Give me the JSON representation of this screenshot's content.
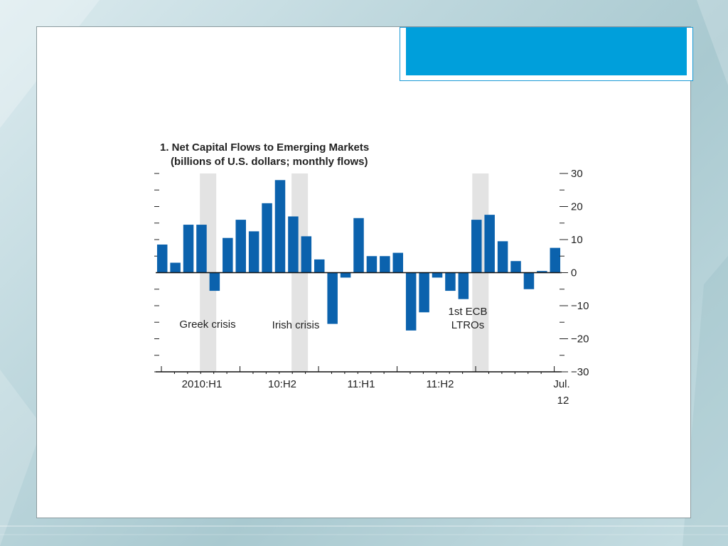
{
  "chart_data": {
    "type": "bar",
    "title": "1. Net Capital Flows to Emerging Markets",
    "subtitle": "(billions of U.S. dollars; monthly flows)",
    "ylim": [
      -30,
      30
    ],
    "y_ticks": [
      30,
      20,
      10,
      0,
      -10,
      -20,
      -30
    ],
    "y_tick_labels": [
      "30",
      "20",
      "10",
      "0",
      "−10",
      "−20",
      "−30"
    ],
    "x_tick_labels": [
      {
        "label": "2010:H1",
        "line2": ""
      },
      {
        "label": "10:H2",
        "line2": ""
      },
      {
        "label": "11:H1",
        "line2": ""
      },
      {
        "label": "11:H2",
        "line2": ""
      },
      {
        "label": "Jul.",
        "line2": "12"
      }
    ],
    "values": [
      8.5,
      3,
      14.5,
      14.5,
      -5.5,
      10.5,
      16,
      12.5,
      21,
      28,
      17,
      11,
      4,
      -15.5,
      -1.5,
      16.5,
      5,
      5,
      6,
      -17.5,
      -12,
      -1.5,
      -5.5,
      -8,
      16,
      17.5,
      9.5,
      3.5,
      -5,
      0.5,
      7.5
    ],
    "bar_color": "#0b62ad",
    "shade_color": "#e3e3e3",
    "shaded_periods": [
      {
        "label": "Greek crisis",
        "label_line2": ""
      },
      {
        "label": "Irish crisis",
        "label_line2": ""
      },
      {
        "label": "1st ECB",
        "label_line2": "LTROs"
      }
    ],
    "grid": false
  }
}
